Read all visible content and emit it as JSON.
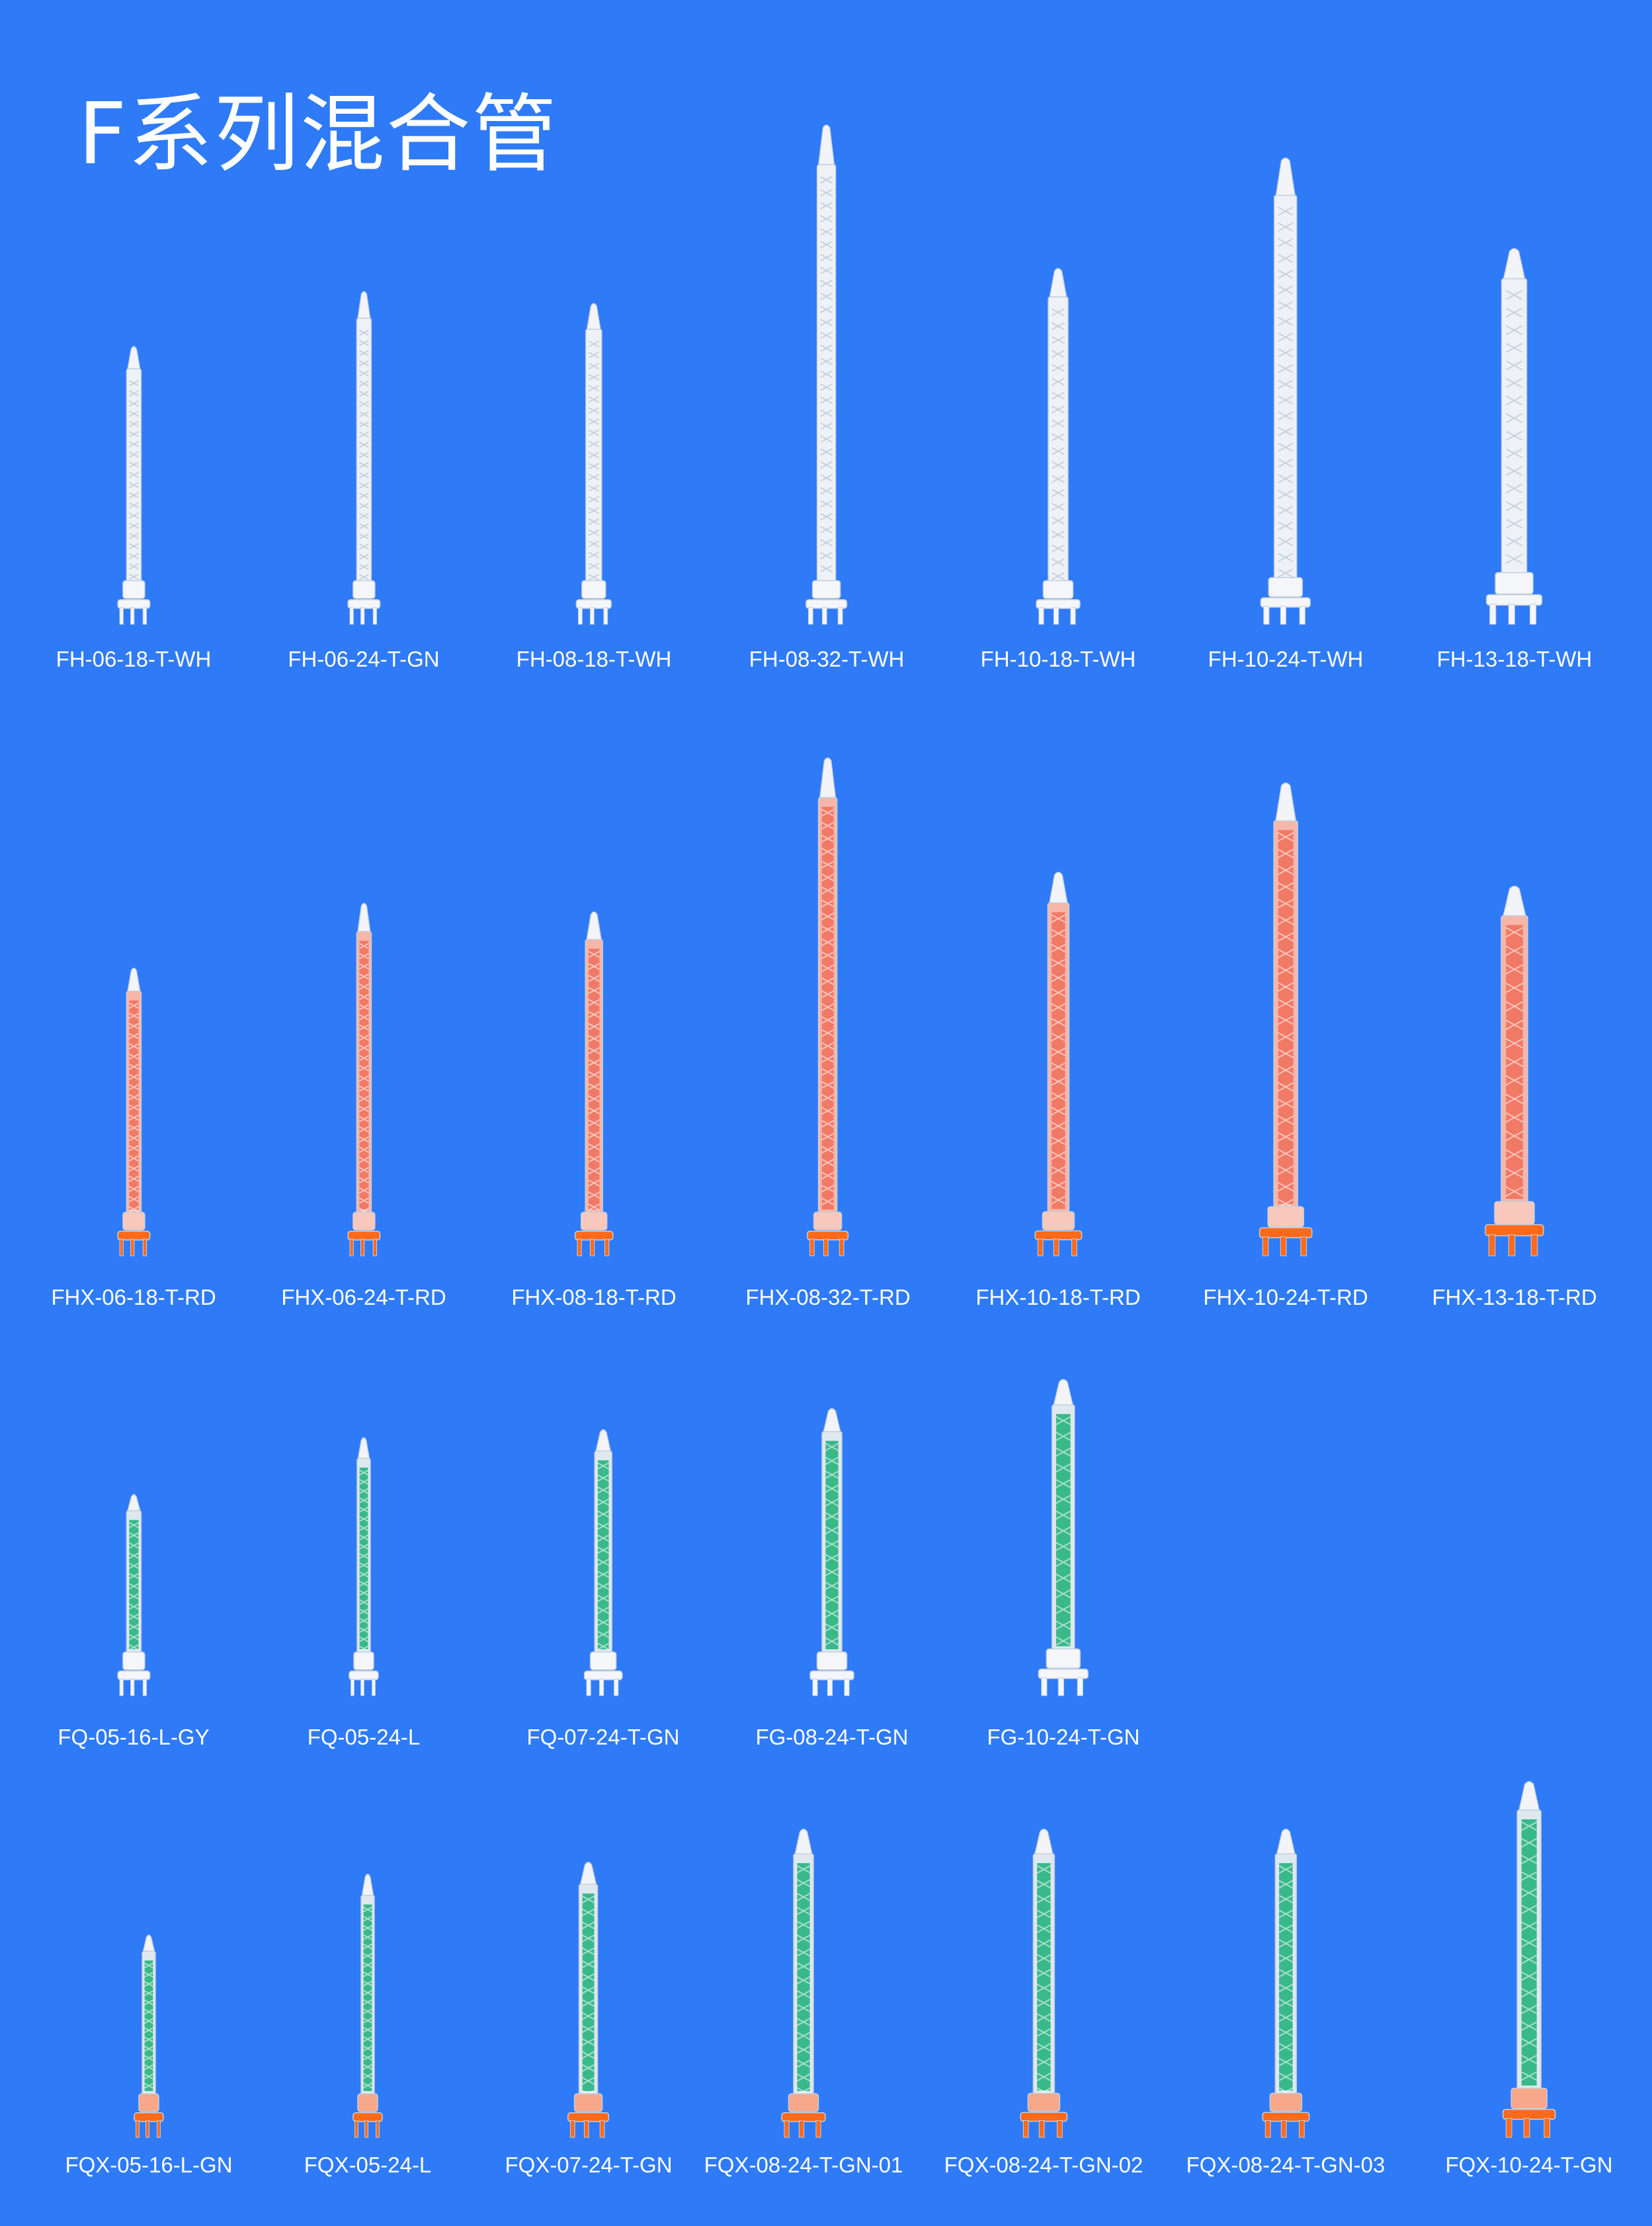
{
  "page": {
    "title": "F系列混合管"
  },
  "rows": [
    {
      "body_style": "white",
      "items": [
        {
          "label": "FH-06-18-T-WH"
        },
        {
          "label": "FH-06-24-T-GN"
        },
        {
          "label": "FH-08-18-T-WH"
        },
        {
          "label": "FH-08-32-T-WH"
        },
        {
          "label": "FH-10-18-T-WH"
        },
        {
          "label": "FH-10-24-T-WH"
        },
        {
          "label": "FH-13-18-T-WH"
        }
      ]
    },
    {
      "body_style": "red",
      "items": [
        {
          "label": "FHX-06-18-T-RD"
        },
        {
          "label": "FHX-06-24-T-RD"
        },
        {
          "label": "FHX-08-18-T-RD"
        },
        {
          "label": "FHX-08-32-T-RD"
        },
        {
          "label": "FHX-10-18-T-RD"
        },
        {
          "label": "FHX-10-24-T-RD"
        },
        {
          "label": "FHX-13-18-T-RD"
        }
      ]
    },
    {
      "body_style": "green",
      "items": [
        {
          "label": "FQ-05-16-L-GY"
        },
        {
          "label": "FQ-05-24-L"
        },
        {
          "label": "FQ-07-24-T-GN"
        },
        {
          "label": "FG-08-24-T-GN"
        },
        {
          "label": "FG-10-24-T-GN"
        }
      ]
    },
    {
      "body_style": "green-orange",
      "items": [
        {
          "label": "FQX-05-16-L-GN"
        },
        {
          "label": "FQX-05-24-L"
        },
        {
          "label": "FQX-07-24-T-GN"
        },
        {
          "label": "FQX-08-24-T-GN-01"
        },
        {
          "label": "FQX-08-24-T-GN-02"
        },
        {
          "label": "FQX-08-24-T-GN-03"
        },
        {
          "label": "FQX-10-24-T-GN"
        }
      ]
    }
  ],
  "colors": {
    "background": "#2f7af7",
    "white_body": "#eef1f6",
    "red_body": "#f07a66",
    "green_core": "#39b98a",
    "orange_base": "#ff6a1a"
  }
}
